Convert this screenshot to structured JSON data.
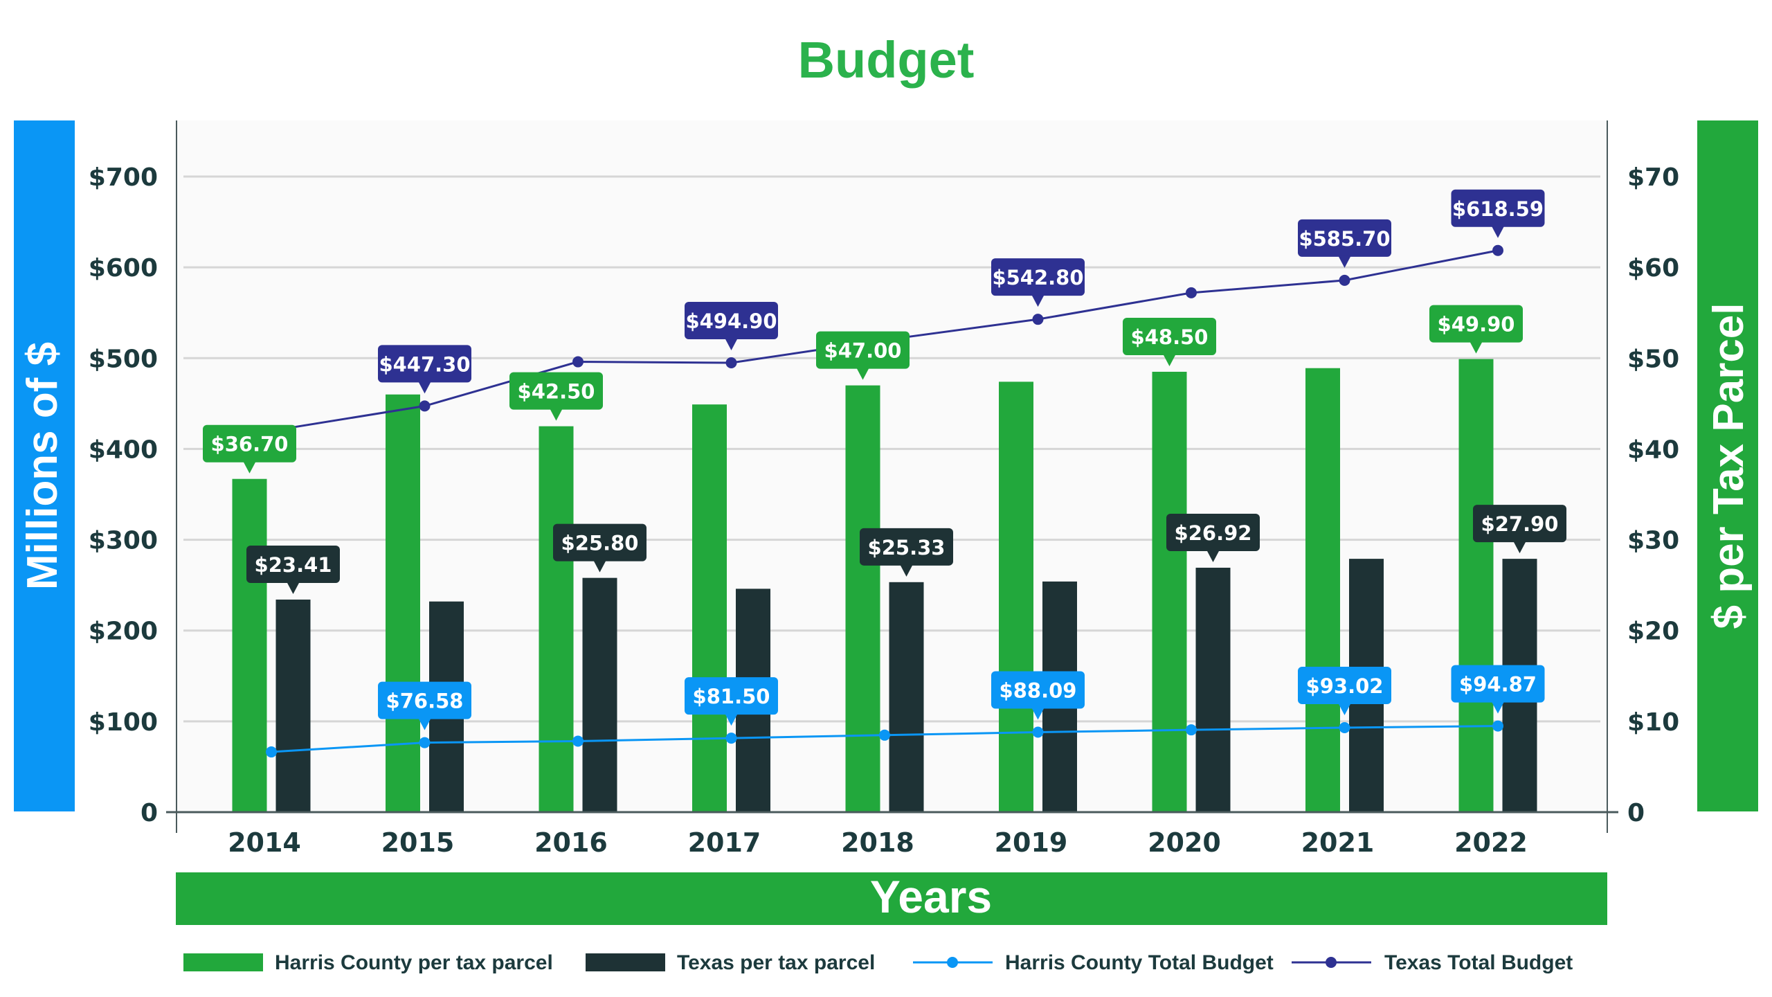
{
  "chart_data": {
    "type": "bar",
    "title": "Budget",
    "xlabel": "Years",
    "ylabel_left": "Millions of $",
    "ylabel_right": "$ per Tax Parcel",
    "categories": [
      "2014",
      "2015",
      "2016",
      "2017",
      "2018",
      "2019",
      "2020",
      "2021",
      "2022"
    ],
    "left_axis": {
      "range": [
        0,
        760
      ],
      "ticks": [
        0,
        100,
        200,
        300,
        400,
        500,
        600,
        700
      ],
      "tick_labels": [
        "0",
        "$100",
        "$200",
        "$300",
        "$400",
        "$500",
        "$600",
        "$700"
      ]
    },
    "right_axis": {
      "range": [
        0,
        76
      ],
      "ticks": [
        0,
        10,
        20,
        30,
        40,
        50,
        60,
        70
      ],
      "tick_labels": [
        "0",
        "$10",
        "$20",
        "$30",
        "$40",
        "$50",
        "$60",
        "$70"
      ]
    },
    "grid": true,
    "legend_position": "bottom",
    "series": [
      {
        "name": "Harris County per tax parcel",
        "kind": "bar",
        "axis": "right",
        "color": "#22a83c",
        "values": [
          36.7,
          46.0,
          42.5,
          44.9,
          47.0,
          47.4,
          48.5,
          48.9,
          49.9
        ],
        "labels": [
          "$36.70",
          null,
          "$42.50",
          null,
          "$47.00",
          null,
          "$48.50",
          null,
          "$49.90"
        ]
      },
      {
        "name": "Texas per tax parcel",
        "kind": "bar",
        "axis": "right",
        "color": "#1e3235",
        "values": [
          23.41,
          23.2,
          25.8,
          24.6,
          25.33,
          25.4,
          26.92,
          27.9,
          27.9
        ],
        "labels": [
          "$23.41",
          null,
          "$25.80",
          null,
          "$25.33",
          null,
          "$26.92",
          null,
          "$27.90"
        ]
      },
      {
        "name": "Harris County Total Budget",
        "kind": "line",
        "axis": "left",
        "color": "#0a96f5",
        "values": [
          66.3,
          76.58,
          78.2,
          81.5,
          84.8,
          88.09,
          90.6,
          93.02,
          94.87
        ],
        "labels": [
          null,
          "$76.58",
          null,
          "$81.50",
          null,
          "$88.09",
          null,
          "$93.02",
          "$94.87"
        ]
      },
      {
        "name": "Texas Total Budget",
        "kind": "line",
        "axis": "left",
        "color": "#2e3192",
        "values": [
          420,
          447.3,
          496,
          494.9,
          520,
          542.8,
          572,
          585.7,
          618.59
        ],
        "labels": [
          null,
          "$447.30",
          null,
          "$494.90",
          null,
          "$542.80",
          null,
          "$585.70",
          "$618.59"
        ]
      }
    ]
  },
  "colors": {
    "title": "#2bb24c",
    "left_band": "#0a96f5",
    "right_band": "#22a83c",
    "x_band": "#22a83c",
    "plot_bg": "#fafafa",
    "grid": "#d6d6d6",
    "axis": "#4a5a5c",
    "text": "#1c3a3d"
  }
}
